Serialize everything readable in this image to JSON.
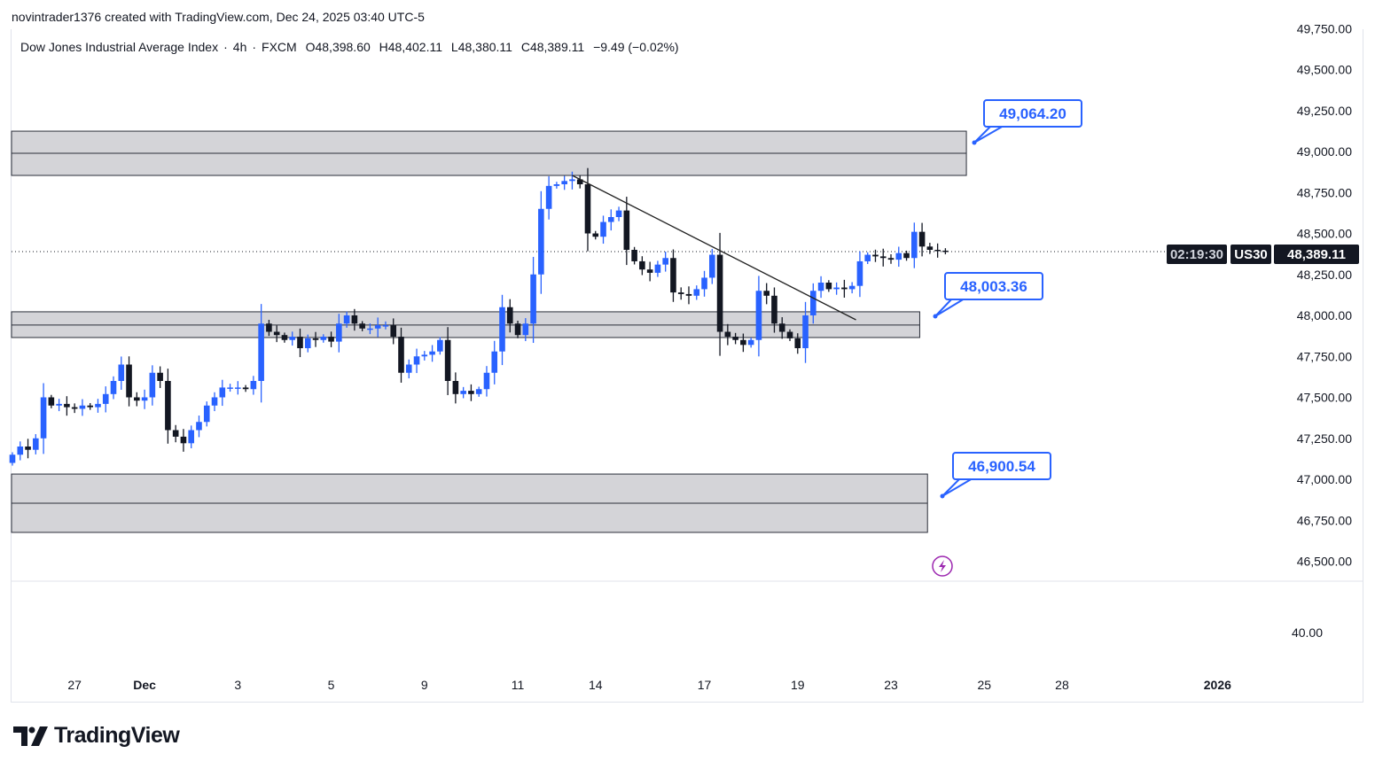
{
  "credit": "novintrader1376 created with TradingView.com, Dec 24, 2025 03:40 UTC-5",
  "legend": {
    "symbol_name": "Dow Jones Industrial Average Index",
    "interval": "4h",
    "exchange": "FXCM",
    "open": "O48,398.60",
    "high": "H48,402.11",
    "low": "L48,380.11",
    "close": "C48,389.11",
    "change": "−9.49 (−0.02%)"
  },
  "price_tag": {
    "symbol": "US30",
    "price": "48,389.11",
    "countdown": "02:19:30"
  },
  "callouts": [
    {
      "value": "49,064.20",
      "price": 49064.2
    },
    {
      "value": "48,003.36",
      "price": 48003.36
    },
    {
      "value": "46,900.54",
      "price": 46900.54
    }
  ],
  "brand": "TradingView",
  "colors": {
    "up": "#2962ff",
    "down": "#131722",
    "zone": "#d4d4d8",
    "callout": "#2962ff",
    "event_icon": "#9c27b0"
  },
  "icons": {
    "event": "lightning-icon",
    "logo": "tradingview-logo"
  },
  "chart_data": {
    "type": "candlestick",
    "title": "Dow Jones Industrial Average Index · 4h · FXCM",
    "ylim": [
      46380,
      49800
    ],
    "y_ticks": [
      "49,750.00",
      "49,500.00",
      "49,250.00",
      "49,000.00",
      "48,750.00",
      "48,500.00",
      "48,250.00",
      "48,000.00",
      "47,750.00",
      "47,500.00",
      "47,250.00",
      "47,000.00",
      "46,750.00",
      "46,500.00"
    ],
    "y_tick_values": [
      49750,
      49500,
      49250,
      49000,
      48750,
      48500,
      48250,
      48000,
      47750,
      47500,
      47250,
      47000,
      46750,
      46500
    ],
    "lower_pane_tick": "40.00",
    "x_ticks": [
      "27",
      "Dec",
      "3",
      "5",
      "9",
      "11",
      "14",
      "17",
      "19",
      "23",
      "25",
      "28",
      "2026"
    ],
    "x_tick_bar_index": [
      8,
      17,
      29,
      41,
      53,
      65,
      75,
      89,
      101,
      113,
      125,
      135,
      155
    ],
    "close": [
      47150,
      47200,
      47180,
      47250,
      47500,
      47450,
      47460,
      47440,
      47430,
      47450,
      47440,
      47460,
      47520,
      47600,
      47700,
      47500,
      47480,
      47500,
      47650,
      47600,
      47300,
      47260,
      47220,
      47300,
      47350,
      47450,
      47500,
      47560,
      47560,
      47560,
      47550,
      47600,
      47950,
      47900,
      47880,
      47850,
      47870,
      47800,
      47860,
      47850,
      47870,
      47840,
      47950,
      48000,
      47950,
      47920,
      47920,
      47940,
      47940,
      47870,
      47650,
      47700,
      47750,
      47760,
      47780,
      47850,
      47600,
      47520,
      47540,
      47520,
      47550,
      47650,
      47780,
      48050,
      47950,
      47880,
      47950,
      48250,
      48650,
      48790,
      48800,
      48820,
      48830,
      48800,
      48500,
      48480,
      48570,
      48600,
      48640,
      48400,
      48330,
      48280,
      48260,
      48310,
      48350,
      48140,
      48130,
      48120,
      48160,
      48230,
      48370,
      47900,
      47870,
      47850,
      47820,
      47850,
      48150,
      48120,
      47950,
      47900,
      47860,
      47800,
      48000,
      48150,
      48200,
      48160,
      48170,
      48160,
      48180,
      48330,
      48370,
      48360,
      48350,
      48340,
      48380,
      48350,
      48510,
      48420,
      48400,
      48395,
      48389.11
    ],
    "last_price": 48389.11,
    "zones": [
      {
        "top": 49124,
        "mid": 48989,
        "bottom": 48854,
        "end_bar": 122.7
      },
      {
        "top": 48022,
        "mid": 47941,
        "bottom": 47865,
        "end_bar": 116.7
      },
      {
        "top": 47032,
        "mid": 46854,
        "bottom": 46676,
        "end_bar": 117.7
      }
    ],
    "trendline": {
      "from": {
        "bar": 72,
        "price": 48854
      },
      "to": {
        "bar": 108.5,
        "price": 47973
      }
    }
  }
}
